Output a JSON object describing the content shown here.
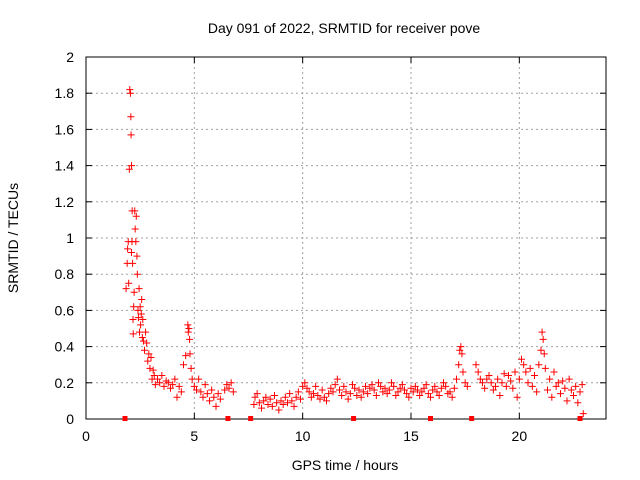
{
  "chart_data": {
    "type": "scatter",
    "title": "Day 091 of 2022, SRMTID for receiver pove",
    "xlabel": "GPS time / hours",
    "ylabel": "SRMTID / TECUs",
    "xlim": [
      0,
      24
    ],
    "ylim": [
      0,
      2
    ],
    "xticks": [
      0,
      5,
      10,
      15,
      20
    ],
    "yticks": [
      0,
      0.2,
      0.4,
      0.6,
      0.8,
      1,
      1.2,
      1.4,
      1.6,
      1.8,
      2
    ],
    "grid": true,
    "legend": "none",
    "marker": "plus",
    "color": "#ff0000",
    "series": [
      {
        "x": [
          1.85,
          1.9,
          1.92,
          1.95,
          1.97,
          2.0,
          2.02,
          2.05,
          2.07,
          2.08,
          2.1,
          2.1,
          2.12,
          2.13,
          2.15,
          2.17,
          2.18,
          2.2,
          2.22,
          2.25,
          2.27,
          2.3,
          2.32,
          2.35,
          2.37,
          2.4,
          2.42,
          2.45,
          2.47,
          2.5,
          2.52,
          2.55,
          2.57,
          2.6,
          2.62,
          2.65,
          2.7,
          2.75,
          2.8,
          2.85,
          2.9,
          2.95,
          3.0,
          3.05,
          3.1,
          3.15,
          3.2,
          3.3,
          3.4,
          3.5,
          3.6,
          3.7,
          3.8,
          3.9,
          4.0,
          4.1,
          4.2,
          4.3,
          4.4,
          4.5,
          4.6,
          4.7,
          4.72,
          4.75,
          4.78,
          4.8,
          4.85,
          4.9,
          5.0,
          5.1,
          5.2,
          5.3,
          5.4,
          5.5,
          5.6,
          5.7,
          5.8,
          5.9,
          6.0,
          6.1,
          6.2,
          6.4,
          6.5,
          6.6,
          6.7,
          6.8,
          7.75,
          7.8,
          7.9,
          8.0,
          8.1,
          8.2,
          8.3,
          8.4,
          8.5,
          8.6,
          8.7,
          8.8,
          8.9,
          9.0,
          9.1,
          9.2,
          9.3,
          9.4,
          9.5,
          9.6,
          9.7,
          9.8,
          9.9,
          10.0,
          10.1,
          10.2,
          10.3,
          10.4,
          10.5,
          10.6,
          10.7,
          10.8,
          10.9,
          11.0,
          11.1,
          11.2,
          11.3,
          11.4,
          11.5,
          11.6,
          11.7,
          11.8,
          11.9,
          12.0,
          12.1,
          12.2,
          12.3,
          12.4,
          12.5,
          12.6,
          12.7,
          12.8,
          12.9,
          13.0,
          13.1,
          13.2,
          13.3,
          13.4,
          13.5,
          13.6,
          13.7,
          13.8,
          13.9,
          14.0,
          14.1,
          14.2,
          14.3,
          14.4,
          14.5,
          14.6,
          14.7,
          14.8,
          14.9,
          15.0,
          15.1,
          15.2,
          15.3,
          15.4,
          15.5,
          15.6,
          15.7,
          15.8,
          15.9,
          16.0,
          16.1,
          16.2,
          16.3,
          16.4,
          16.5,
          16.6,
          16.7,
          16.8,
          16.9,
          17.0,
          17.1,
          17.2,
          17.25,
          17.3,
          17.35,
          17.4,
          17.5,
          17.6,
          18.0,
          18.1,
          18.2,
          18.3,
          18.4,
          18.5,
          18.6,
          18.7,
          18.8,
          18.9,
          19.0,
          19.1,
          19.2,
          19.3,
          19.4,
          19.5,
          19.6,
          19.7,
          19.8,
          19.9,
          20.0,
          20.1,
          20.2,
          20.3,
          20.4,
          20.5,
          20.6,
          20.7,
          20.8,
          20.9,
          21.0,
          21.05,
          21.1,
          21.15,
          21.2,
          21.3,
          21.4,
          21.5,
          21.6,
          21.7,
          21.8,
          21.9,
          22.0,
          22.1,
          22.2,
          22.3,
          22.4,
          22.5,
          22.6,
          22.7,
          22.8,
          22.9,
          22.95
        ],
        "y": [
          0.72,
          0.86,
          0.94,
          0.98,
          0.75,
          1.38,
          1.82,
          1.8,
          1.67,
          1.57,
          1.4,
          0.92,
          0.98,
          1.15,
          0.86,
          0.55,
          0.47,
          0.62,
          0.7,
          1.15,
          1.05,
          0.98,
          1.12,
          0.9,
          0.8,
          0.6,
          0.56,
          0.72,
          0.48,
          0.62,
          0.52,
          0.58,
          0.66,
          0.45,
          0.55,
          0.43,
          0.38,
          0.48,
          0.42,
          0.32,
          0.36,
          0.28,
          0.34,
          0.22,
          0.27,
          0.24,
          0.19,
          0.22,
          0.2,
          0.24,
          0.18,
          0.21,
          0.2,
          0.17,
          0.19,
          0.22,
          0.12,
          0.18,
          0.15,
          0.3,
          0.35,
          0.52,
          0.48,
          0.5,
          0.44,
          0.36,
          0.28,
          0.22,
          0.18,
          0.16,
          0.22,
          0.15,
          0.12,
          0.19,
          0.14,
          0.1,
          0.16,
          0.12,
          0.07,
          0.14,
          0.11,
          0.16,
          0.19,
          0.17,
          0.2,
          0.15,
          0.08,
          0.12,
          0.14,
          0.09,
          0.06,
          0.1,
          0.12,
          0.08,
          0.11,
          0.07,
          0.13,
          0.09,
          0.05,
          0.1,
          0.08,
          0.12,
          0.09,
          0.14,
          0.1,
          0.07,
          0.12,
          0.15,
          0.11,
          0.18,
          0.2,
          0.17,
          0.15,
          0.12,
          0.14,
          0.18,
          0.13,
          0.11,
          0.16,
          0.12,
          0.1,
          0.14,
          0.17,
          0.15,
          0.19,
          0.22,
          0.16,
          0.13,
          0.18,
          0.15,
          0.11,
          0.14,
          0.19,
          0.17,
          0.13,
          0.16,
          0.12,
          0.15,
          0.18,
          0.14,
          0.17,
          0.19,
          0.16,
          0.13,
          0.2,
          0.18,
          0.15,
          0.17,
          0.14,
          0.16,
          0.2,
          0.18,
          0.13,
          0.15,
          0.17,
          0.19,
          0.16,
          0.14,
          0.12,
          0.17,
          0.15,
          0.18,
          0.16,
          0.13,
          0.15,
          0.17,
          0.19,
          0.14,
          0.12,
          0.16,
          0.18,
          0.15,
          0.13,
          0.17,
          0.2,
          0.18,
          0.14,
          0.15,
          0.12,
          0.17,
          0.22,
          0.3,
          0.38,
          0.4,
          0.36,
          0.26,
          0.2,
          0.18,
          0.3,
          0.26,
          0.22,
          0.2,
          0.17,
          0.22,
          0.24,
          0.2,
          0.16,
          0.18,
          0.22,
          0.13,
          0.2,
          0.25,
          0.18,
          0.24,
          0.21,
          0.17,
          0.26,
          0.12,
          0.22,
          0.33,
          0.3,
          0.26,
          0.2,
          0.28,
          0.18,
          0.24,
          0.15,
          0.3,
          0.38,
          0.48,
          0.44,
          0.36,
          0.28,
          0.16,
          0.22,
          0.12,
          0.26,
          0.18,
          0.2,
          0.14,
          0.21,
          0.17,
          0.1,
          0.22,
          0.16,
          0.13,
          0.18,
          0.09,
          0.15,
          0.19,
          0.03
        ]
      }
    ],
    "baseline_markers": [
      1.8,
      6.55,
      7.6,
      12.35,
      15.9,
      17.8,
      22.8
    ]
  }
}
